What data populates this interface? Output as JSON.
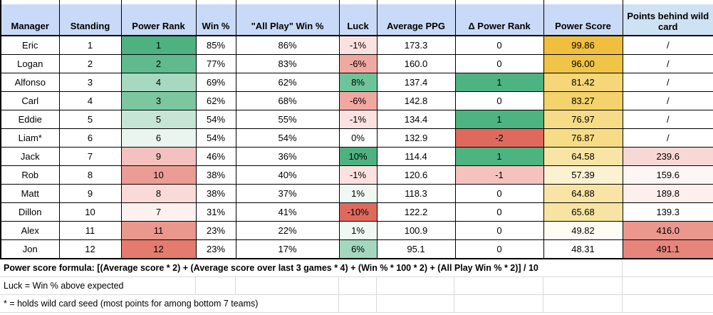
{
  "table": {
    "columns": [
      {
        "id": "manager",
        "label": "Manager",
        "bg": "#c9daf8"
      },
      {
        "id": "standing",
        "label": "Standing",
        "bg": "#c9daf8"
      },
      {
        "id": "power-rank",
        "label": "Power Rank",
        "bg": "#c9daf8"
      },
      {
        "id": "win-pct",
        "label": "Win %",
        "bg": "#c9daf8"
      },
      {
        "id": "all-play-win",
        "label": "\"All Play\" Win %",
        "bg": "#c9daf8"
      },
      {
        "id": "luck",
        "label": "Luck",
        "bg": "#c9daf8"
      },
      {
        "id": "average-ppg",
        "label": "Average PPG",
        "bg": "#c9daf8"
      },
      {
        "id": "delta-power-rank",
        "label": "Δ Power Rank",
        "bg": "#c9daf8"
      },
      {
        "id": "power-score",
        "label": "Power Score",
        "bg": "#c9daf8"
      },
      {
        "id": "points-behind",
        "label": "Points behind wild card",
        "bg": "#cfe2f3"
      }
    ],
    "rows": [
      {
        "cells": [
          {
            "v": "Eric"
          },
          {
            "v": "1"
          },
          {
            "v": "1",
            "bg": "#4eb180"
          },
          {
            "v": "85%"
          },
          {
            "v": "86%"
          },
          {
            "v": "-1%",
            "bg": "#fbe2e0"
          },
          {
            "v": "173.3"
          },
          {
            "v": "0"
          },
          {
            "v": "99.86",
            "bg": "#efbf3d"
          },
          {
            "v": "/"
          }
        ]
      },
      {
        "cells": [
          {
            "v": "Logan"
          },
          {
            "v": "2"
          },
          {
            "v": "2",
            "bg": "#5fbb8d"
          },
          {
            "v": "77%"
          },
          {
            "v": "83%"
          },
          {
            "v": "-6%",
            "bg": "#f0a8a1"
          },
          {
            "v": "160.0"
          },
          {
            "v": "0"
          },
          {
            "v": "96.00",
            "bg": "#f0c446"
          },
          {
            "v": "/"
          }
        ]
      },
      {
        "cells": [
          {
            "v": "Alfonso"
          },
          {
            "v": "3"
          },
          {
            "v": "4",
            "bg": "#a6d9c0"
          },
          {
            "v": "69%"
          },
          {
            "v": "62%"
          },
          {
            "v": "8%",
            "bg": "#6ec49a"
          },
          {
            "v": "137.4"
          },
          {
            "v": "1",
            "bg": "#4db381"
          },
          {
            "v": "81.42",
            "bg": "#f5d678"
          },
          {
            "v": "/"
          }
        ]
      },
      {
        "cells": [
          {
            "v": "Carl"
          },
          {
            "v": "4"
          },
          {
            "v": "3",
            "bg": "#7cc7a0"
          },
          {
            "v": "62%"
          },
          {
            "v": "68%"
          },
          {
            "v": "-6%",
            "bg": "#f0a8a1"
          },
          {
            "v": "142.8"
          },
          {
            "v": "0"
          },
          {
            "v": "83.27",
            "bg": "#f4d26c"
          },
          {
            "v": "/"
          }
        ]
      },
      {
        "cells": [
          {
            "v": "Eddie"
          },
          {
            "v": "5"
          },
          {
            "v": "5",
            "bg": "#c6e5d4"
          },
          {
            "v": "54%"
          },
          {
            "v": "55%"
          },
          {
            "v": "-1%",
            "bg": "#fbe2e0"
          },
          {
            "v": "134.4"
          },
          {
            "v": "1",
            "bg": "#4db381"
          },
          {
            "v": "76.97",
            "bg": "#f6dc86"
          },
          {
            "v": "/"
          }
        ]
      },
      {
        "cells": [
          {
            "v": "Liam*"
          },
          {
            "v": "6"
          },
          {
            "v": "6",
            "bg": "#eaf5f0"
          },
          {
            "v": "54%"
          },
          {
            "v": "54%"
          },
          {
            "v": "0%"
          },
          {
            "v": "132.9"
          },
          {
            "v": "-2",
            "bg": "#e0695e"
          },
          {
            "v": "76.87",
            "bg": "#f6dc86"
          },
          {
            "v": "/"
          }
        ]
      },
      {
        "cells": [
          {
            "v": "Jack"
          },
          {
            "v": "7"
          },
          {
            "v": "9",
            "bg": "#f3c2be"
          },
          {
            "v": "46%"
          },
          {
            "v": "36%"
          },
          {
            "v": "10%",
            "bg": "#4eb180"
          },
          {
            "v": "114.4"
          },
          {
            "v": "1",
            "bg": "#4db381"
          },
          {
            "v": "64.58",
            "bg": "#f8e5a6"
          },
          {
            "v": "239.6",
            "bg": "#f8d8d5"
          }
        ]
      },
      {
        "cells": [
          {
            "v": "Rob"
          },
          {
            "v": "8"
          },
          {
            "v": "10",
            "bg": "#eb9d95"
          },
          {
            "v": "38%"
          },
          {
            "v": "40%"
          },
          {
            "v": "-1%",
            "bg": "#fbe2e0"
          },
          {
            "v": "120.6"
          },
          {
            "v": "-1",
            "bg": "#f6c2bd"
          },
          {
            "v": "57.39",
            "bg": "#fcf1d0"
          },
          {
            "v": "159.6",
            "bg": "#fef6f5"
          }
        ]
      },
      {
        "cells": [
          {
            "v": "Matt"
          },
          {
            "v": "9"
          },
          {
            "v": "8",
            "bg": "#f9dad7"
          },
          {
            "v": "38%"
          },
          {
            "v": "37%"
          },
          {
            "v": "1%",
            "bg": "#eff8f3"
          },
          {
            "v": "118.3"
          },
          {
            "v": "0"
          },
          {
            "v": "64.88",
            "bg": "#f8e5a5"
          },
          {
            "v": "189.8",
            "bg": "#fdefed"
          }
        ]
      },
      {
        "cells": [
          {
            "v": "Dillon"
          },
          {
            "v": "10"
          },
          {
            "v": "7",
            "bg": "#fdf1f0"
          },
          {
            "v": "31%"
          },
          {
            "v": "41%"
          },
          {
            "v": "-10%",
            "bg": "#e0695e"
          },
          {
            "v": "122.2"
          },
          {
            "v": "0"
          },
          {
            "v": "65.68",
            "bg": "#f8e4a2"
          },
          {
            "v": "139.3"
          }
        ]
      },
      {
        "cells": [
          {
            "v": "Alex"
          },
          {
            "v": "11"
          },
          {
            "v": "11",
            "bg": "#ea978e"
          },
          {
            "v": "23%"
          },
          {
            "v": "22%"
          },
          {
            "v": "1%",
            "bg": "#eff8f3"
          },
          {
            "v": "100.9"
          },
          {
            "v": "0"
          },
          {
            "v": "49.82",
            "bg": "#fffdf3"
          },
          {
            "v": "416.0",
            "bg": "#ea978e"
          }
        ]
      },
      {
        "cells": [
          {
            "v": "Jon"
          },
          {
            "v": "12"
          },
          {
            "v": "12",
            "bg": "#e47b6f"
          },
          {
            "v": "23%"
          },
          {
            "v": "17%"
          },
          {
            "v": "6%",
            "bg": "#a3d7be"
          },
          {
            "v": "95.1"
          },
          {
            "v": "0"
          },
          {
            "v": "48.31"
          },
          {
            "v": "491.1",
            "bg": "#e6857b"
          }
        ]
      }
    ]
  },
  "notes": [
    {
      "text": "Power score formula: [(Average score * 2) + (Average score over last 3 games * 4) + (Win % * 100 * 2) + (All Play Win % * 2)] / 10",
      "bold": true
    },
    {
      "text": "Luck = Win % above expected",
      "bold": false
    },
    {
      "text": "* = holds wild card seed (most points for among bottom 7 teams)",
      "bold": false
    }
  ],
  "colors": {
    "header_blue": "#c9daf8",
    "header_light_blue": "#cfe2f3",
    "scale_green_max": "#4eb180",
    "scale_red_max": "#e0695e",
    "scale_gold_max": "#efbf3d",
    "grid_black": "#000000",
    "gridline_gray": "#d9d9d9"
  }
}
